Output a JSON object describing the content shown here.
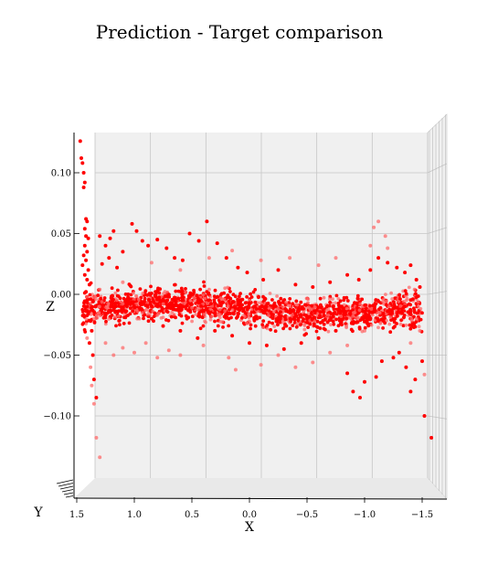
{
  "chart_data": {
    "type": "scatter",
    "title": "Prediction - Target comparison",
    "xlabel": "X",
    "ylabel": "Y",
    "zlabel": "Z",
    "projection": "3d",
    "view": "front, looking along the y axis; x axis reversed",
    "x_ticks": [
      1.5,
      1.0,
      0.5,
      0.0,
      -0.5,
      -1.0,
      -1.5
    ],
    "x_tick_labels": [
      "1.5",
      "1.0",
      "0.5",
      "0.0",
      "−0.5",
      "−1.0",
      "−1.5"
    ],
    "z_ticks": [
      0.1,
      0.05,
      0.0,
      -0.05,
      -0.1
    ],
    "z_tick_labels": [
      "0.10",
      "0.05",
      "0.00",
      "−0.05",
      "−0.10"
    ],
    "xlim": [
      1.5,
      -1.7
    ],
    "zlim": [
      -0.16,
      0.13
    ],
    "grid": true,
    "pane_color": "#f0f0f0",
    "series": [
      {
        "color": "#ff0000",
        "opacity": 1.0,
        "points": [
          [
            1.47,
            0.126
          ],
          [
            1.46,
            0.112
          ],
          [
            1.45,
            0.108
          ],
          [
            1.44,
            0.1
          ],
          [
            1.43,
            0.092
          ],
          [
            1.44,
            0.088
          ],
          [
            1.42,
            0.062
          ],
          [
            1.41,
            0.06
          ],
          [
            1.43,
            0.054
          ],
          [
            1.42,
            0.048
          ],
          [
            1.4,
            0.046
          ],
          [
            1.43,
            0.04
          ],
          [
            1.41,
            0.035
          ],
          [
            1.44,
            0.032
          ],
          [
            1.42,
            0.028
          ],
          [
            1.45,
            0.024
          ],
          [
            1.4,
            0.02
          ],
          [
            1.43,
            0.016
          ],
          [
            1.41,
            0.012
          ],
          [
            1.39,
            0.008
          ],
          [
            1.42,
            0.002
          ],
          [
            1.38,
            -0.004
          ],
          [
            1.41,
            -0.01
          ],
          [
            1.4,
            -0.016
          ],
          [
            1.38,
            -0.022
          ],
          [
            1.37,
            -0.03
          ],
          [
            1.39,
            -0.04
          ],
          [
            1.36,
            -0.05
          ],
          [
            1.35,
            -0.07
          ],
          [
            1.33,
            -0.085
          ],
          [
            1.3,
            0.048
          ],
          [
            1.25,
            0.04
          ],
          [
            1.21,
            0.046
          ],
          [
            1.18,
            0.052
          ],
          [
            1.28,
            0.025
          ],
          [
            1.22,
            0.03
          ],
          [
            1.15,
            0.022
          ],
          [
            1.1,
            0.035
          ],
          [
            1.02,
            0.058
          ],
          [
            0.98,
            0.052
          ],
          [
            0.93,
            0.044
          ],
          [
            0.88,
            0.04
          ],
          [
            0.8,
            0.045
          ],
          [
            0.72,
            0.038
          ],
          [
            0.65,
            0.03
          ],
          [
            0.58,
            0.028
          ],
          [
            0.52,
            0.05
          ],
          [
            0.44,
            0.044
          ],
          [
            0.37,
            0.06
          ],
          [
            0.28,
            0.042
          ],
          [
            0.2,
            0.03
          ],
          [
            0.1,
            0.022
          ],
          [
            0.02,
            0.018
          ],
          [
            -0.12,
            0.012
          ],
          [
            -0.25,
            0.02
          ],
          [
            -0.4,
            0.008
          ],
          [
            -0.55,
            0.006
          ],
          [
            -0.7,
            0.01
          ],
          [
            -0.85,
            0.016
          ],
          [
            -0.95,
            0.012
          ],
          [
            -1.05,
            0.02
          ],
          [
            -1.12,
            0.03
          ],
          [
            -1.2,
            0.026
          ],
          [
            -1.28,
            0.022
          ],
          [
            -1.35,
            0.018
          ],
          [
            -1.4,
            0.024
          ],
          [
            -1.45,
            0.012
          ],
          [
            -1.48,
            0.006
          ],
          [
            -1.42,
            -0.004
          ],
          [
            -1.44,
            -0.07
          ],
          [
            -1.4,
            -0.08
          ],
          [
            -1.36,
            -0.06
          ],
          [
            -1.5,
            -0.055
          ],
          [
            -1.52,
            -0.1
          ],
          [
            -1.58,
            -0.118
          ],
          [
            -0.9,
            -0.08
          ],
          [
            -0.96,
            -0.085
          ],
          [
            -1.0,
            -0.072
          ],
          [
            -1.1,
            -0.068
          ],
          [
            -0.85,
            -0.065
          ],
          [
            -1.15,
            -0.055
          ],
          [
            -1.25,
            -0.052
          ],
          [
            -1.3,
            -0.048
          ],
          [
            1.05,
            -0.004
          ],
          [
            0.95,
            -0.012
          ],
          [
            0.85,
            -0.02
          ],
          [
            0.75,
            -0.026
          ],
          [
            0.6,
            -0.03
          ],
          [
            0.45,
            -0.036
          ],
          [
            0.3,
            -0.03
          ],
          [
            0.15,
            -0.034
          ],
          [
            0.0,
            -0.04
          ],
          [
            -0.15,
            -0.042
          ],
          [
            -0.3,
            -0.045
          ],
          [
            -0.45,
            -0.04
          ],
          [
            -0.6,
            -0.036
          ],
          [
            -0.75,
            -0.03
          ],
          [
            -0.9,
            -0.024
          ],
          [
            -1.05,
            -0.02
          ],
          [
            -1.2,
            -0.014
          ],
          [
            -1.35,
            -0.01
          ]
        ]
      },
      {
        "color": "#ff6b6b",
        "opacity": 0.75,
        "points": [
          [
            1.41,
            -0.036
          ],
          [
            1.38,
            -0.06
          ],
          [
            1.37,
            -0.075
          ],
          [
            1.35,
            -0.09
          ],
          [
            1.33,
            -0.118
          ],
          [
            1.3,
            -0.134
          ],
          [
            1.25,
            -0.04
          ],
          [
            1.18,
            -0.05
          ],
          [
            1.1,
            -0.044
          ],
          [
            1.0,
            -0.048
          ],
          [
            0.9,
            -0.04
          ],
          [
            0.8,
            -0.052
          ],
          [
            0.7,
            -0.046
          ],
          [
            0.6,
            -0.05
          ],
          [
            0.4,
            -0.042
          ],
          [
            0.18,
            -0.052
          ],
          [
            0.12,
            -0.062
          ],
          [
            -0.1,
            -0.058
          ],
          [
            -0.25,
            -0.05
          ],
          [
            -0.4,
            -0.06
          ],
          [
            -0.55,
            -0.056
          ],
          [
            -0.7,
            -0.048
          ],
          [
            -0.85,
            -0.042
          ],
          [
            -1.0,
            -0.03
          ],
          [
            -1.05,
            0.04
          ],
          [
            -1.08,
            0.055
          ],
          [
            -1.12,
            0.06
          ],
          [
            -1.18,
            0.048
          ],
          [
            -1.2,
            0.038
          ],
          [
            -0.75,
            0.03
          ],
          [
            -0.6,
            0.024
          ],
          [
            -0.35,
            0.03
          ],
          [
            -0.1,
            0.028
          ],
          [
            0.15,
            0.036
          ],
          [
            0.35,
            0.03
          ],
          [
            0.6,
            0.02
          ],
          [
            0.85,
            0.026
          ],
          [
            1.1,
            0.01
          ],
          [
            1.3,
            0.004
          ],
          [
            1.35,
            -0.02
          ],
          [
            -1.45,
            -0.02
          ],
          [
            -1.4,
            -0.04
          ],
          [
            -1.48,
            -0.03
          ],
          [
            -1.52,
            -0.066
          ]
        ]
      }
    ],
    "n_noise_points": 1800
  }
}
